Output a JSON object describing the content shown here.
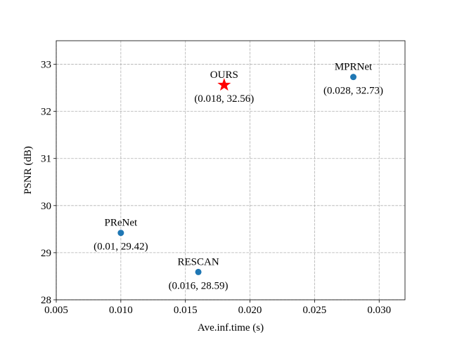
{
  "chart_data": {
    "type": "scatter",
    "xlabel": "Ave.inf.time (s)",
    "ylabel": "PSNR (dB)",
    "xlim": [
      0.005,
      0.032
    ],
    "ylim": [
      28,
      33.5
    ],
    "xticks": [
      0.005,
      0.01,
      0.015,
      0.02,
      0.025,
      0.03
    ],
    "xtick_labels": [
      "0.005",
      "0.010",
      "0.015",
      "0.020",
      "0.025",
      "0.030"
    ],
    "yticks": [
      28,
      29,
      30,
      31,
      32,
      33
    ],
    "ytick_labels": [
      "28",
      "29",
      "30",
      "31",
      "32",
      "33"
    ],
    "grid": true,
    "points": [
      {
        "name": "PReNet",
        "x": 0.01,
        "y": 29.42,
        "label": "(0.01, 29.42)",
        "marker": "circle",
        "color": "#1f77b4"
      },
      {
        "name": "RESCAN",
        "x": 0.016,
        "y": 28.59,
        "label": "(0.016, 28.59)",
        "marker": "circle",
        "color": "#1f77b4"
      },
      {
        "name": "OURS",
        "x": 0.018,
        "y": 32.56,
        "label": "(0.018, 32.56)",
        "marker": "star",
        "color": "#ff0000"
      },
      {
        "name": "MPRNet",
        "x": 0.028,
        "y": 32.73,
        "label": "(0.028, 32.73)",
        "marker": "circle",
        "color": "#1f77b4"
      }
    ]
  }
}
